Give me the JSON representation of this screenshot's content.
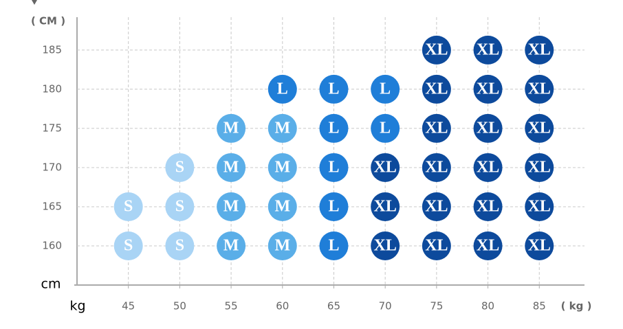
{
  "chart_data": {
    "type": "scatter",
    "y_axis_label": "( CM )",
    "x_axis_label": "( kg )",
    "y_unit": "cm",
    "x_unit": "kg",
    "xlim": [
      40,
      89.4
    ],
    "ylim": [
      155,
      189.2
    ],
    "xticks": [
      45,
      50,
      55,
      60,
      65,
      70,
      75,
      80,
      85
    ],
    "yticks": [
      160,
      165,
      170,
      175,
      180,
      185
    ],
    "grid": true,
    "series": [
      {
        "name": "S",
        "color": "#a9d4f5",
        "x": [
          45,
          45,
          50,
          50,
          50
        ],
        "values": [
          165,
          160,
          170,
          165,
          160
        ]
      },
      {
        "name": "M",
        "color": "#5aaee8",
        "x": [
          55,
          55,
          55,
          55,
          60,
          60,
          60,
          60
        ],
        "values": [
          175,
          170,
          165,
          160,
          175,
          170,
          165,
          160
        ]
      },
      {
        "name": "L",
        "color": "#1f7ed8",
        "x": [
          60,
          65,
          65,
          65,
          65,
          65,
          70,
          70
        ],
        "values": [
          180,
          180,
          175,
          170,
          165,
          160,
          180,
          175
        ]
      },
      {
        "name": "XL",
        "color": "#0d4a9c",
        "x": [
          70,
          70,
          70,
          75,
          75,
          75,
          75,
          75,
          75,
          80,
          80,
          80,
          80,
          80,
          80,
          85,
          85,
          85,
          85,
          85,
          85
        ],
        "values": [
          170,
          165,
          160,
          185,
          180,
          175,
          170,
          165,
          160,
          185,
          180,
          175,
          170,
          165,
          160,
          185,
          180,
          175,
          170,
          165,
          160
        ]
      }
    ]
  }
}
